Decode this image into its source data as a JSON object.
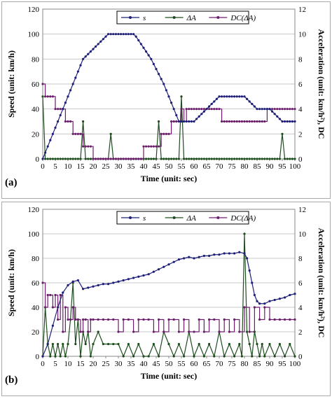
{
  "chart_data": [
    {
      "type": "line",
      "panel_label": "(a)",
      "xlabel": "Time (unit: sec)",
      "ylabel": "Speed (unit: km/h)",
      "y2label": "Acceleration (unit: km/h²), DC",
      "xlim": [
        0,
        100
      ],
      "ylim": [
        0,
        120
      ],
      "y2lim": [
        0,
        12
      ],
      "xticks": [
        "0",
        "5",
        "10",
        "15",
        "20",
        "25",
        "30",
        "35",
        "40",
        "45",
        "50",
        "55",
        "60",
        "65",
        "70",
        "75",
        "80",
        "85",
        "90",
        "95",
        "100"
      ],
      "yticks": [
        "0",
        "20",
        "40",
        "60",
        "80",
        "100",
        "120"
      ],
      "y2ticks": [
        "0",
        "2",
        "4",
        "6",
        "8",
        "10",
        "12"
      ],
      "legend": [
        "s",
        "ΔA",
        "DC(ΔA)"
      ],
      "legend_position": "top-center",
      "colors": {
        "s": "#1f1f7a",
        "dA": "#1d4d1d",
        "dc": "#6b1f6b"
      },
      "series": [
        {
          "name": "s",
          "axis": "left",
          "x": [
            0,
            1,
            2,
            3,
            4,
            5,
            6,
            7,
            8,
            9,
            10,
            11,
            12,
            13,
            14,
            15,
            16,
            17,
            18,
            19,
            20,
            21,
            22,
            23,
            24,
            25,
            26,
            27,
            28,
            29,
            30,
            31,
            32,
            33,
            34,
            35,
            36,
            37,
            38,
            39,
            40,
            41,
            42,
            43,
            44,
            45,
            46,
            47,
            48,
            49,
            50,
            51,
            52,
            53,
            54,
            55,
            56,
            57,
            58,
            59,
            60,
            61,
            62,
            63,
            64,
            65,
            66,
            67,
            68,
            69,
            70,
            71,
            72,
            73,
            74,
            75,
            76,
            77,
            78,
            79,
            80,
            81,
            82,
            83,
            84,
            85,
            86,
            87,
            88,
            89,
            90,
            91,
            92,
            93,
            94,
            95,
            96,
            97,
            98,
            99,
            100
          ],
          "values": [
            0,
            5,
            10,
            15,
            20,
            25,
            30,
            35,
            40,
            45,
            50,
            55,
            60,
            65,
            70,
            75,
            80,
            82,
            84,
            86,
            88,
            90,
            92,
            94,
            96,
            98,
            100,
            100,
            100,
            100,
            100,
            100,
            100,
            100,
            100,
            100,
            100,
            98,
            95,
            92,
            89,
            86,
            83,
            80,
            76,
            72,
            68,
            64,
            60,
            55,
            50,
            45,
            40,
            35,
            30,
            30,
            30,
            30,
            30,
            30,
            30,
            32,
            34,
            36,
            38,
            40,
            42,
            44,
            46,
            48,
            50,
            50,
            50,
            50,
            50,
            50,
            50,
            50,
            50,
            50,
            50,
            48,
            46,
            44,
            42,
            40,
            40,
            40,
            40,
            40,
            40,
            38,
            36,
            34,
            32,
            30,
            30,
            30,
            30,
            30,
            30
          ]
        },
        {
          "name": "ΔA",
          "axis": "right",
          "x": [
            0,
            1,
            2,
            3,
            4,
            5,
            6,
            7,
            8,
            9,
            10,
            11,
            12,
            13,
            14,
            15,
            16,
            17,
            18,
            19,
            20,
            21,
            22,
            23,
            24,
            25,
            26,
            27,
            28,
            29,
            30,
            31,
            32,
            33,
            34,
            35,
            36,
            37,
            38,
            39,
            40,
            41,
            42,
            43,
            44,
            45,
            46,
            47,
            48,
            49,
            50,
            51,
            52,
            53,
            54,
            55,
            56,
            57,
            58,
            59,
            60,
            61,
            62,
            63,
            64,
            65,
            66,
            67,
            68,
            69,
            70,
            71,
            72,
            73,
            74,
            75,
            76,
            77,
            78,
            79,
            80,
            81,
            82,
            83,
            84,
            85,
            86,
            87,
            88,
            89,
            90,
            91,
            92,
            93,
            94,
            95,
            96,
            97,
            98,
            99,
            100
          ],
          "values": [
            5,
            0,
            0,
            0,
            0,
            0,
            0,
            0,
            0,
            0,
            0,
            0,
            0,
            0,
            0,
            0,
            3,
            0,
            0,
            0,
            0,
            0,
            0,
            0,
            0,
            0,
            0,
            2,
            0,
            0,
            0,
            0,
            0,
            0,
            0,
            0,
            0,
            0,
            0,
            0,
            0,
            0,
            0,
            0,
            0,
            0,
            3,
            0,
            0,
            0,
            0,
            0,
            0,
            0,
            0,
            5,
            0,
            0,
            0,
            0,
            0,
            0,
            0,
            0,
            0,
            0,
            0,
            0,
            0,
            0,
            0,
            0,
            0,
            0,
            0,
            0,
            0,
            0,
            0,
            0,
            0,
            0,
            0,
            0,
            0,
            0,
            0,
            0,
            0,
            0,
            0,
            0,
            0,
            0,
            0,
            2,
            0,
            0,
            0,
            0,
            0
          ]
        },
        {
          "name": "DC(ΔA)",
          "axis": "right",
          "x": [
            0,
            1,
            2,
            3,
            4,
            5,
            6,
            7,
            8,
            9,
            10,
            11,
            12,
            13,
            14,
            15,
            16,
            17,
            18,
            19,
            20,
            21,
            22,
            23,
            24,
            25,
            26,
            27,
            28,
            29,
            30,
            31,
            32,
            33,
            34,
            35,
            36,
            37,
            38,
            39,
            40,
            41,
            42,
            43,
            44,
            45,
            46,
            47,
            48,
            49,
            50,
            51,
            52,
            53,
            54,
            55,
            56,
            57,
            58,
            59,
            60,
            61,
            62,
            63,
            64,
            65,
            66,
            67,
            68,
            69,
            70,
            71,
            72,
            73,
            74,
            75,
            76,
            77,
            78,
            79,
            80,
            81,
            82,
            83,
            84,
            85,
            86,
            87,
            88,
            89,
            90,
            91,
            92,
            93,
            94,
            95,
            96,
            97,
            98,
            99,
            100
          ],
          "values": [
            6,
            5,
            5,
            5,
            5,
            4,
            4,
            4,
            4,
            3,
            3,
            3,
            2,
            2,
            2,
            2,
            1,
            1,
            1,
            1,
            0,
            0,
            0,
            0,
            0,
            0,
            0,
            0,
            0,
            0,
            0,
            0,
            0,
            0,
            0,
            0,
            0,
            0,
            0,
            0,
            1,
            1,
            1,
            1,
            1,
            1,
            1,
            2,
            2,
            2,
            2,
            3,
            3,
            3,
            3,
            4,
            3,
            4,
            4,
            4,
            4,
            4,
            4,
            4,
            4,
            4,
            4,
            4,
            4,
            4,
            4,
            3,
            3,
            3,
            3,
            3,
            3,
            3,
            3,
            3,
            3,
            3,
            3,
            3,
            3,
            3,
            3,
            3,
            3,
            4,
            4,
            4,
            4,
            4,
            4,
            4,
            4,
            4,
            4,
            4,
            4
          ]
        }
      ]
    },
    {
      "type": "line",
      "panel_label": "(b)",
      "xlabel": "Time (unit: sec)",
      "ylabel": "Speed (unit: km/h)",
      "y2label": "Acceleration (unit: km/h²), DC",
      "xlim": [
        0,
        100
      ],
      "ylim": [
        0,
        120
      ],
      "y2lim": [
        0,
        12
      ],
      "xticks": [
        "0",
        "5",
        "10",
        "15",
        "20",
        "25",
        "30",
        "35",
        "40",
        "45",
        "50",
        "55",
        "60",
        "65",
        "70",
        "75",
        "80",
        "85",
        "90",
        "95",
        "100"
      ],
      "yticks": [
        "0",
        "20",
        "40",
        "60",
        "80",
        "100",
        "120"
      ],
      "y2ticks": [
        "0",
        "2",
        "4",
        "6",
        "8",
        "10",
        "12"
      ],
      "legend": [
        "s",
        "ΔA",
        "DC(ΔA)"
      ],
      "legend_position": "top-center",
      "colors": {
        "s": "#1f1f7a",
        "dA": "#1d4d1d",
        "dc": "#6b1f6b"
      },
      "series": [
        {
          "name": "s",
          "axis": "left",
          "x": [
            0,
            2,
            4,
            6,
            8,
            10,
            12,
            14,
            16,
            18,
            20,
            22,
            24,
            26,
            28,
            30,
            32,
            34,
            36,
            38,
            40,
            42,
            44,
            46,
            48,
            50,
            52,
            54,
            56,
            58,
            60,
            62,
            64,
            66,
            68,
            70,
            72,
            74,
            76,
            78,
            80,
            81,
            82,
            83,
            84,
            85,
            86,
            88,
            90,
            92,
            94,
            96,
            98,
            100
          ],
          "values": [
            0,
            10,
            25,
            40,
            52,
            58,
            61,
            62,
            55,
            56,
            57,
            58,
            59,
            59,
            60,
            61,
            62,
            63,
            64,
            65,
            66,
            67,
            69,
            71,
            73,
            75,
            77,
            79,
            80,
            81,
            80,
            81,
            82,
            82,
            83,
            83,
            84,
            84,
            84,
            85,
            84,
            80,
            70,
            60,
            50,
            45,
            43,
            43,
            45,
            46,
            47,
            48,
            50,
            51
          ]
        },
        {
          "name": "ΔA",
          "axis": "right",
          "x": [
            0,
            1,
            2,
            3,
            4,
            5,
            6,
            7,
            8,
            9,
            10,
            11,
            12,
            13,
            14,
            15,
            16,
            17,
            18,
            19,
            20,
            22,
            24,
            26,
            28,
            30,
            32,
            34,
            36,
            38,
            40,
            42,
            44,
            46,
            48,
            50,
            52,
            54,
            56,
            58,
            60,
            62,
            64,
            66,
            68,
            70,
            72,
            74,
            76,
            78,
            79,
            80,
            81,
            82,
            83,
            84,
            85,
            86,
            87,
            88,
            90,
            92,
            94,
            96,
            98,
            100
          ],
          "values": [
            0,
            4,
            1,
            0,
            1,
            0,
            1,
            0,
            1,
            0,
            1,
            3,
            6,
            1,
            3,
            0,
            2,
            1,
            2,
            0,
            1,
            2,
            1,
            1,
            1,
            1,
            0,
            1,
            0,
            1,
            0,
            0,
            1,
            0,
            2,
            1,
            0,
            1,
            0,
            2,
            0,
            1,
            0,
            1,
            0,
            2,
            0,
            1,
            0,
            1,
            0,
            10,
            2,
            1,
            0,
            2,
            1,
            0,
            1,
            0,
            1,
            0,
            1,
            0,
            1,
            0
          ]
        },
        {
          "name": "DC(ΔA)",
          "axis": "right",
          "x": [
            0,
            1,
            2,
            3,
            4,
            5,
            6,
            7,
            8,
            9,
            10,
            11,
            12,
            13,
            14,
            15,
            16,
            17,
            18,
            19,
            20,
            22,
            24,
            26,
            28,
            30,
            32,
            34,
            36,
            38,
            40,
            42,
            44,
            46,
            48,
            50,
            52,
            54,
            56,
            58,
            60,
            62,
            64,
            66,
            68,
            70,
            72,
            74,
            76,
            78,
            80,
            82,
            84,
            86,
            88,
            90,
            92,
            94,
            96,
            98,
            100
          ],
          "values": [
            6,
            4,
            5,
            5,
            4,
            5,
            3,
            5,
            2,
            4,
            3,
            3,
            4,
            3,
            3,
            2,
            3,
            3,
            2,
            3,
            3,
            3,
            3,
            3,
            3,
            2,
            3,
            3,
            2,
            3,
            3,
            3,
            2,
            3,
            2,
            3,
            3,
            2,
            3,
            2,
            2,
            3,
            2,
            3,
            3,
            2,
            3,
            2,
            3,
            2,
            4,
            2,
            4,
            3,
            4,
            3,
            3,
            3,
            3,
            3,
            3
          ]
        }
      ]
    }
  ]
}
